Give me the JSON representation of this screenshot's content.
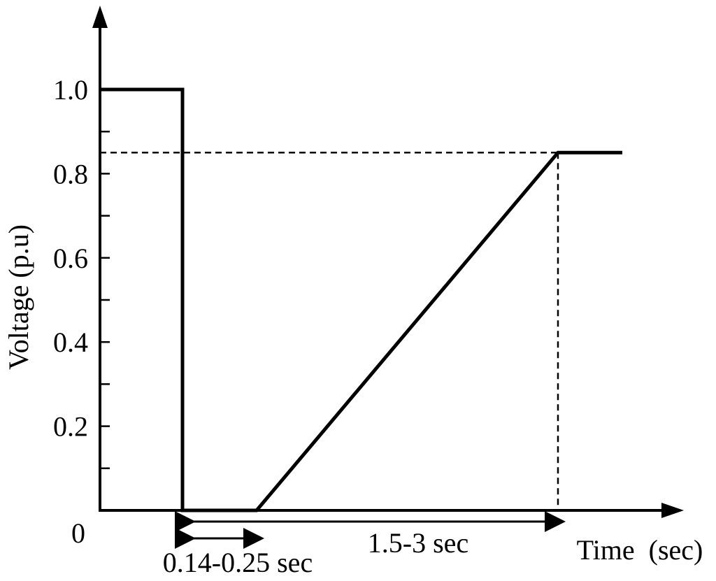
{
  "chart_data": {
    "type": "line",
    "title": "",
    "xlabel": "Time  (sec)",
    "ylabel": "Voltage (p.u)",
    "origin_label": "0",
    "ylim": [
      0,
      1.0
    ],
    "y_ticks_major": [
      "0.2",
      "0.4",
      "0.6",
      "0.8",
      "1.0"
    ],
    "grid": false,
    "legend": "none",
    "series": [
      {
        "points": [
          {
            "x": 0,
            "y": 1.0
          },
          {
            "x": 1,
            "y": 1.0
          },
          {
            "x": 1,
            "y": 0
          },
          {
            "x": 2,
            "y": 0
          },
          {
            "x": 3,
            "y": 0.85
          },
          {
            "x": 4,
            "y": 0.85
          }
        ]
      }
    ],
    "reference_level": 0.85,
    "annotations": [
      {
        "text": "0.14-0.25 sec",
        "from": 1,
        "to": 2
      },
      {
        "text": "1.5-3 sec",
        "from": 1,
        "to": 3
      }
    ],
    "colors": {
      "line": "#000000"
    }
  }
}
